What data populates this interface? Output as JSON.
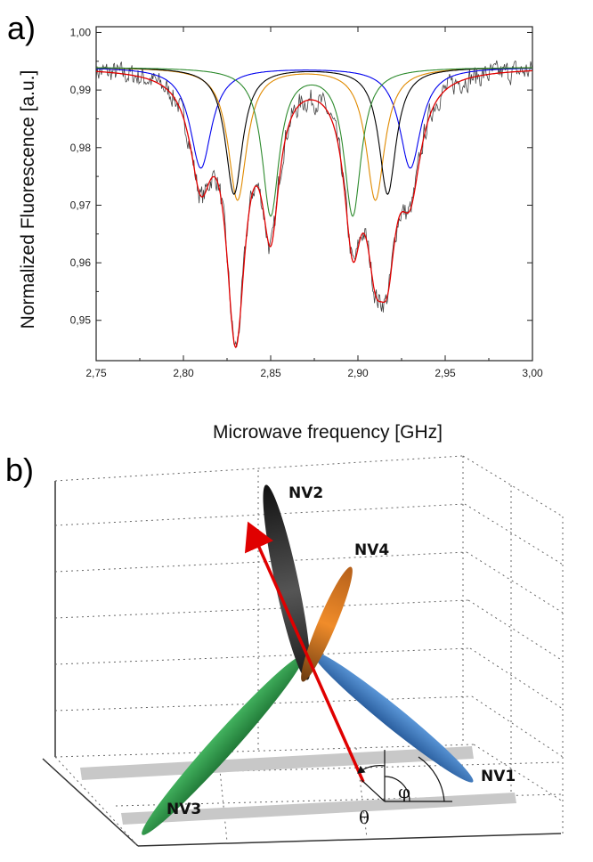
{
  "panel_a": {
    "label": "a)",
    "chart_data": {
      "type": "line",
      "xlabel": "Microwave frequency [GHz]",
      "ylabel": "Normalized Fluorescence [a.u.]",
      "xlim": [
        2.75,
        3.0
      ],
      "ylim": [
        0.943,
        1.001
      ],
      "xticks": [
        2.75,
        2.8,
        2.85,
        2.9,
        2.95,
        3.0
      ],
      "xtick_labels": [
        "2,75",
        "2,80",
        "2,85",
        "2,90",
        "2,95",
        "3,00"
      ],
      "yticks": [
        0.95,
        0.96,
        0.97,
        0.98,
        0.99,
        1.0
      ],
      "ytick_labels": [
        "0,95",
        "0,96",
        "0,97",
        "0,98",
        "0,99",
        "1,00"
      ],
      "grid": false,
      "baseline": 0.994,
      "series": [
        {
          "color": "#0000ee",
          "style": "lorentzian-pair",
          "centers": [
            2.81,
            2.93
          ],
          "depth": 0.0175,
          "width": 0.0075
        },
        {
          "color": "#e08a00",
          "style": "lorentzian-pair",
          "centers": [
            2.831,
            2.91
          ],
          "depth": 0.023,
          "width": 0.0065
        },
        {
          "color": "#000000",
          "style": "lorentzian-pair",
          "centers": [
            2.829,
            2.917
          ],
          "depth": 0.022,
          "width": 0.006
        },
        {
          "color": "#2e8b2e",
          "style": "lorentzian-pair",
          "centers": [
            2.85,
            2.897
          ],
          "depth": 0.0255,
          "width": 0.006
        },
        {
          "color": "#e00000",
          "style": "sum-fit"
        },
        {
          "color": "#444444",
          "style": "measured-data",
          "noise": 0.0018
        }
      ]
    }
  },
  "panel_b": {
    "label": "b)",
    "nv_labels": [
      "NV1",
      "NV2",
      "NV3",
      "NV4"
    ],
    "angle_labels": [
      "θ",
      "φ"
    ],
    "colors": {
      "NV1": "#3d7bc4",
      "NV2": "#2a2a2a",
      "NV3": "#2f9a4a",
      "NV4": "#e0801e",
      "field_arrow": "#e00000"
    }
  }
}
